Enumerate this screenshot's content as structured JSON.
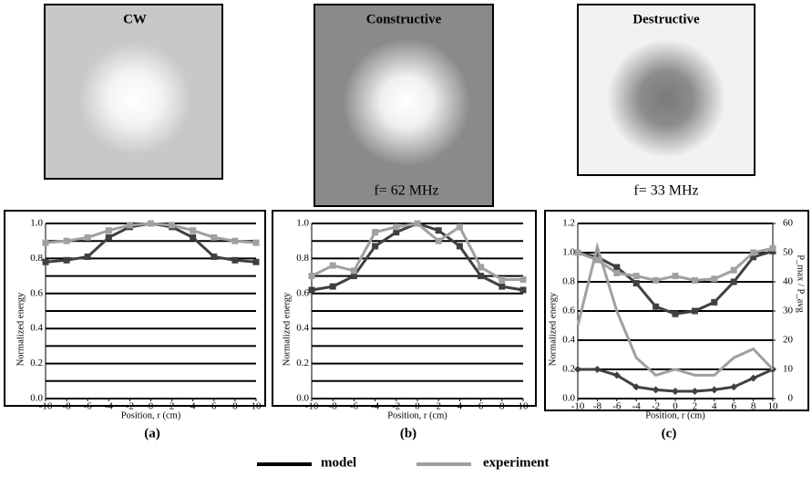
{
  "images": [
    {
      "title": "CW",
      "label": "(a)"
    },
    {
      "title": "Constructive",
      "caption": "f= 62 MHz",
      "label": "(b)"
    },
    {
      "title": "Destructive",
      "caption": "f= 33 MHz",
      "label": "(c)"
    }
  ],
  "legend": [
    {
      "name": "model",
      "color": "#000000"
    },
    {
      "name": "experiment",
      "color": "#a0a0a0"
    }
  ],
  "chart_data": [
    {
      "type": "line",
      "xlabel": "Position, r (cm)",
      "ylabel": "Normalized energy",
      "x": [
        -10,
        -8,
        -6,
        -4,
        -2,
        0,
        2,
        4,
        6,
        8,
        10
      ],
      "xlim": [
        -10,
        10
      ],
      "xticks": [
        -10,
        -8,
        -6,
        -4,
        -2,
        0,
        2,
        4,
        6,
        8,
        10
      ],
      "ylim": [
        0,
        1
      ],
      "yticks": [
        {
          "value": 0,
          "label": "0.0"
        },
        {
          "value": 0.2,
          "label": "0.2"
        },
        {
          "value": 0.4,
          "label": "0.4"
        },
        {
          "value": 0.6,
          "label": "0.6"
        },
        {
          "value": 0.8,
          "label": "0.8"
        },
        {
          "value": 1,
          "label": "1.0"
        }
      ],
      "minor_yticks": [
        0.1,
        0.3,
        0.5,
        0.7,
        0.9
      ],
      "grid": true,
      "series": [
        {
          "color": "#404040",
          "marker": "square",
          "values": [
            0.78,
            0.79,
            0.81,
            0.92,
            0.98,
            1.0,
            0.98,
            0.92,
            0.81,
            0.79,
            0.78
          ]
        },
        {
          "color": "#a0a0a0",
          "marker": "square",
          "values": [
            0.89,
            0.9,
            0.92,
            0.96,
            0.99,
            1.0,
            0.99,
            0.96,
            0.92,
            0.9,
            0.89
          ]
        }
      ]
    },
    {
      "type": "line",
      "xlabel": "Position, r (cm)",
      "ylabel": "Normalized energy",
      "x": [
        -10,
        -8,
        -6,
        -4,
        -2,
        0,
        2,
        4,
        6,
        8,
        10
      ],
      "xlim": [
        -10,
        10
      ],
      "xticks": [
        -10,
        -8,
        -6,
        -4,
        -2,
        0,
        2,
        4,
        6,
        8,
        10
      ],
      "ylim": [
        0,
        1
      ],
      "yticks": [
        {
          "value": 0,
          "label": "0.0"
        },
        {
          "value": 0.2,
          "label": "0.2"
        },
        {
          "value": 0.4,
          "label": "0.4"
        },
        {
          "value": 0.6,
          "label": "0.6"
        },
        {
          "value": 0.8,
          "label": "0.8"
        },
        {
          "value": 1,
          "label": "1.0"
        }
      ],
      "minor_yticks": [
        0.1,
        0.3,
        0.5,
        0.7,
        0.9
      ],
      "grid": true,
      "series": [
        {
          "color": "#404040",
          "marker": "square",
          "values": [
            0.62,
            0.64,
            0.7,
            0.87,
            0.95,
            1.0,
            0.96,
            0.87,
            0.7,
            0.64,
            0.62
          ]
        },
        {
          "color": "#a0a0a0",
          "marker": "square",
          "values": [
            0.7,
            0.76,
            0.73,
            0.95,
            0.98,
            1.0,
            0.9,
            0.98,
            0.75,
            0.68,
            0.68
          ]
        }
      ]
    },
    {
      "type": "line",
      "xlabel": "Position, r (cm)",
      "ylabel": "Normalized energy",
      "y2label": "P_max / P_avg",
      "x": [
        -10,
        -8,
        -6,
        -4,
        -2,
        0,
        2,
        4,
        6,
        8,
        10
      ],
      "xlim": [
        -10,
        10
      ],
      "xticks": [
        -10,
        -8,
        -6,
        -4,
        -2,
        0,
        2,
        4,
        6,
        8,
        10
      ],
      "ylim": [
        0,
        1.2
      ],
      "yticks": [
        {
          "value": 0,
          "label": "0.0"
        },
        {
          "value": 0.2,
          "label": "0.2"
        },
        {
          "value": 0.4,
          "label": "0.4"
        },
        {
          "value": 0.6,
          "label": "0.6"
        },
        {
          "value": 0.8,
          "label": "0.8"
        },
        {
          "value": 1,
          "label": "1.0"
        },
        {
          "value": 1.2,
          "label": "1.2"
        }
      ],
      "y2lim": [
        0,
        60
      ],
      "y2ticks": [
        0,
        10,
        20,
        30,
        40,
        50,
        60
      ],
      "grid": true,
      "series": [
        {
          "color": "#404040",
          "marker": "square",
          "values": [
            1.0,
            0.97,
            0.9,
            0.79,
            0.63,
            0.58,
            0.6,
            0.66,
            0.8,
            0.97,
            1.01
          ]
        },
        {
          "color": "#a0a0a0",
          "marker": "square",
          "values": [
            1.0,
            0.95,
            0.86,
            0.84,
            0.81,
            0.84,
            0.81,
            0.82,
            0.88,
            1.0,
            1.03
          ]
        },
        {
          "color": "#404040",
          "marker": "diamond",
          "axis": "y2",
          "values": [
            10,
            10,
            8,
            4,
            3,
            2.5,
            2.5,
            3,
            4,
            7,
            10
          ]
        },
        {
          "color": "#a0a0a0",
          "marker": "none",
          "axis": "y2",
          "values": [
            25,
            52,
            30,
            14,
            8,
            10,
            8,
            8,
            14,
            17,
            10
          ]
        }
      ]
    }
  ]
}
